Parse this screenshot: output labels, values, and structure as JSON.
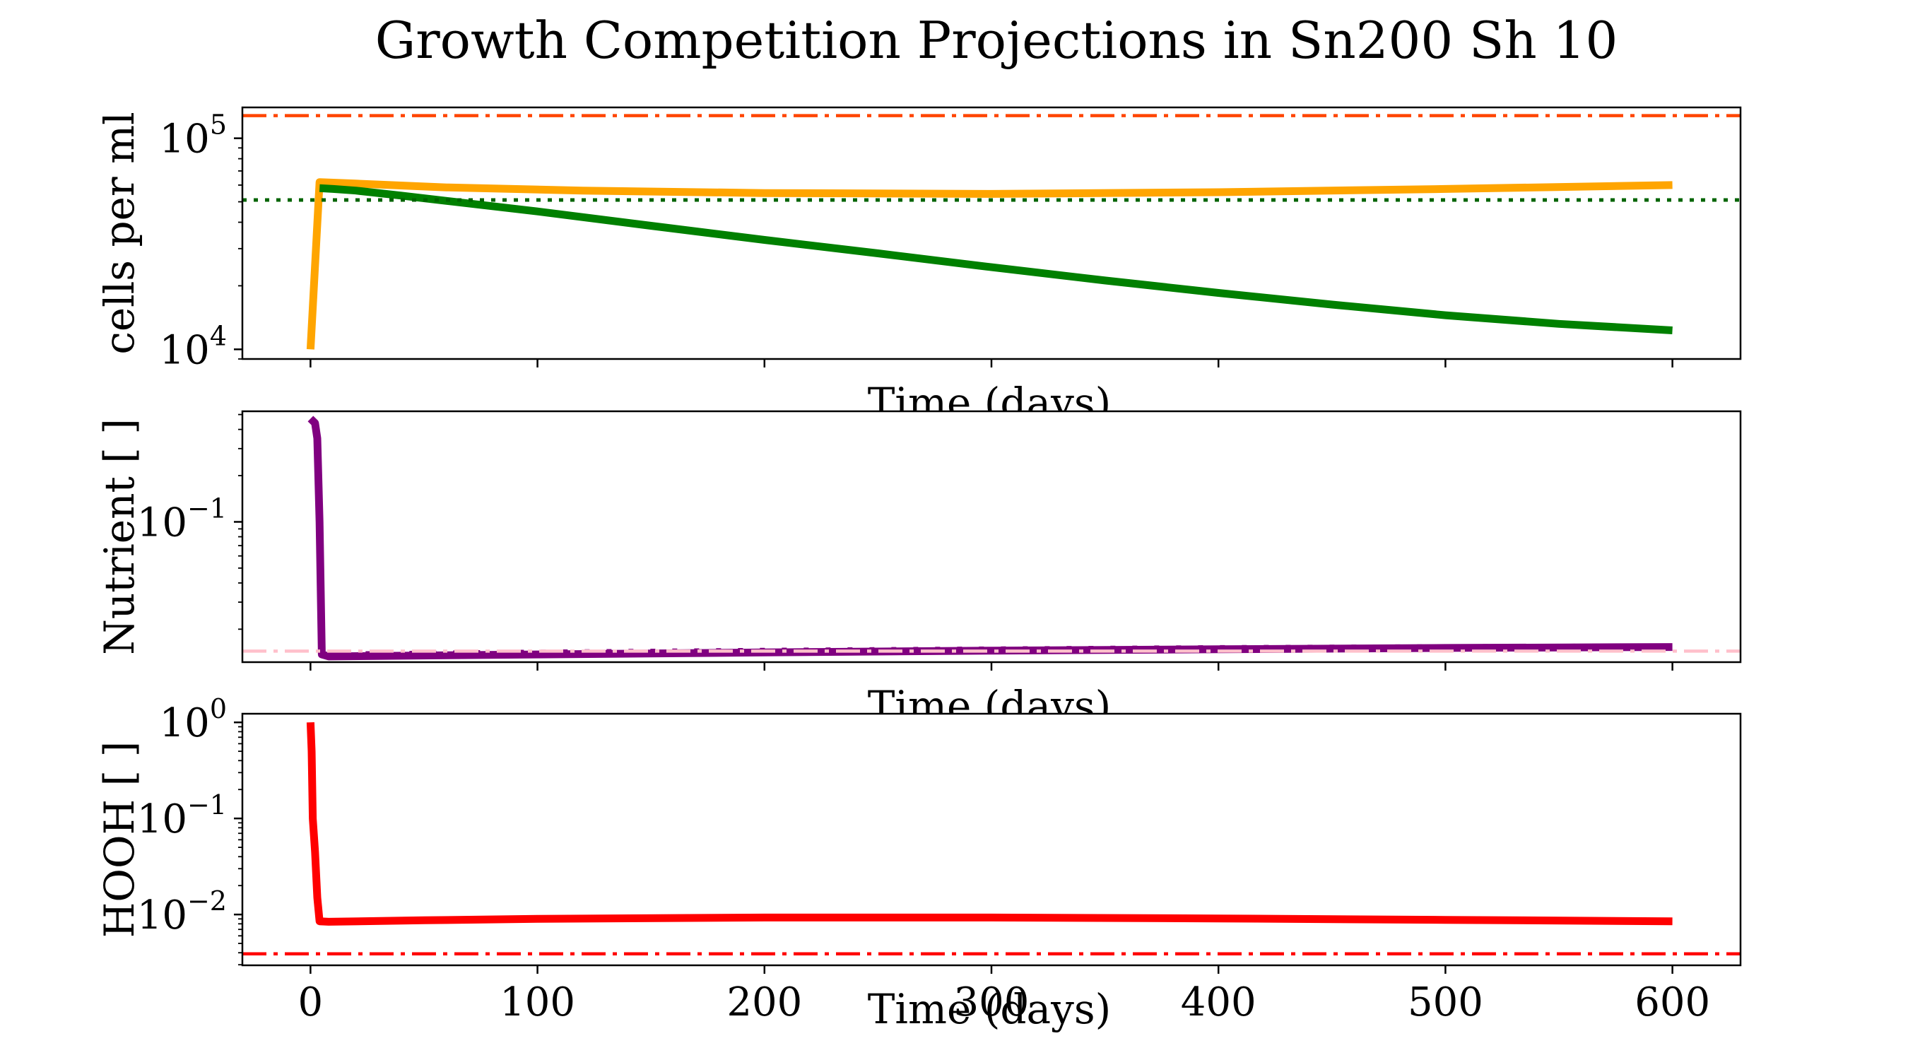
{
  "figure": {
    "title": "Growth Competition Projections in Sn200 Sh 10"
  },
  "chart_data": [
    {
      "type": "line",
      "yscale": "log",
      "ylabel": "cells per ml",
      "xlabel": "Time (days)",
      "xlim": [
        -30,
        630
      ],
      "ylim": [
        9000,
        140000
      ],
      "xticks": [
        0,
        100,
        200,
        300,
        400,
        500,
        600
      ],
      "yticks": [
        {
          "value": 10000,
          "base": "10",
          "exp": "4"
        },
        {
          "value": 100000,
          "base": "10",
          "exp": "5"
        }
      ],
      "series": [
        {
          "color": "#ffa500",
          "style": "solid",
          "x": [
            0,
            4,
            20,
            60,
            120,
            200,
            300,
            400,
            500,
            600
          ],
          "y": [
            10000,
            62000,
            61000,
            58500,
            56500,
            55000,
            54500,
            55500,
            57500,
            60000
          ]
        },
        {
          "color": "#008000",
          "style": "solid",
          "x": [
            4,
            10,
            20,
            40,
            60,
            100,
            150,
            200,
            250,
            300,
            350,
            400,
            450,
            500,
            550,
            600
          ],
          "y": [
            58000,
            57500,
            56500,
            53500,
            50500,
            45000,
            38500,
            33000,
            28500,
            24500,
            21200,
            18500,
            16300,
            14500,
            13200,
            12300
          ]
        },
        {
          "color": "#ff4500",
          "style": "dashdot",
          "hline": 128000
        },
        {
          "color": "#006400",
          "style": "dotted",
          "hline": 51000
        }
      ]
    },
    {
      "type": "line",
      "yscale": "log",
      "ylabel": "Nutrient [ ]",
      "xlabel": "Time (days)",
      "xlim": [
        -30,
        630
      ],
      "ylim": [
        0.0122,
        0.525
      ],
      "xticks": [
        0,
        100,
        200,
        300,
        400,
        500,
        600
      ],
      "yticks": [
        {
          "value": 0.1,
          "base": "10",
          "exp": "−1"
        }
      ],
      "series": [
        {
          "color": "#800080",
          "style": "solid",
          "x": [
            0,
            2,
            3,
            4,
            5,
            8,
            100,
            200,
            300,
            400,
            500,
            600
          ],
          "y": [
            0.47,
            0.44,
            0.35,
            0.1,
            0.0137,
            0.0133,
            0.0137,
            0.0141,
            0.0145,
            0.0148,
            0.0151,
            0.0153
          ]
        },
        {
          "color": "#800080",
          "style": "dotted",
          "x": [
            5,
            100,
            200,
            300,
            400,
            500,
            600
          ],
          "y": [
            0.0137,
            0.0141,
            0.0145,
            0.0148,
            0.0151,
            0.0153,
            0.0155
          ]
        },
        {
          "color": "#ffc0cb",
          "style": "dashdot",
          "hline": 0.0144
        }
      ]
    },
    {
      "type": "line",
      "yscale": "log",
      "ylabel": "HOOH [ ]",
      "xlabel": "Time (days)",
      "xlim": [
        -30,
        630
      ],
      "ylim": [
        0.00296,
        1.23
      ],
      "xticks": [
        0,
        100,
        200,
        300,
        400,
        500,
        600
      ],
      "yticks": [
        {
          "value": 1,
          "base": "10",
          "exp": "0"
        },
        {
          "value": 0.1,
          "base": "10",
          "exp": "−1"
        },
        {
          "value": 0.01,
          "base": "10",
          "exp": "−2"
        }
      ],
      "series": [
        {
          "color": "#ff0000",
          "style": "solid",
          "x": [
            0,
            0.5,
            1,
            2,
            3,
            4,
            8,
            50,
            100,
            200,
            300,
            400,
            500,
            600
          ],
          "y": [
            1,
            0.5,
            0.1,
            0.045,
            0.015,
            0.0085,
            0.0084,
            0.0087,
            0.009,
            0.0093,
            0.0093,
            0.0091,
            0.0088,
            0.0085
          ]
        },
        {
          "color": "#ff0000",
          "style": "dashdot",
          "hline": 0.0039
        }
      ]
    }
  ]
}
